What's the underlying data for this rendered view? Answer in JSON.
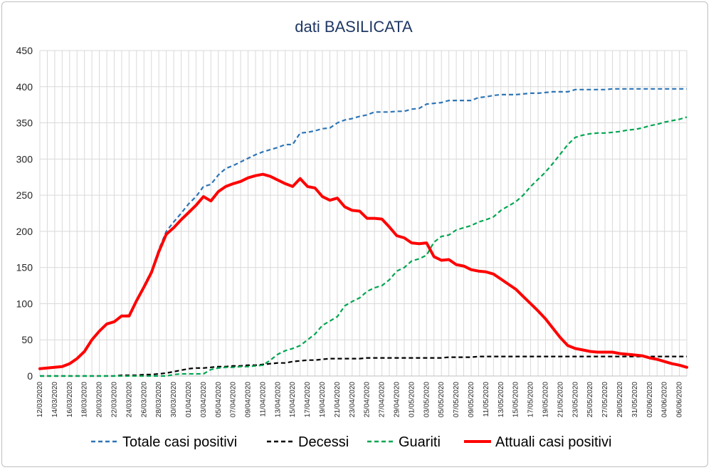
{
  "chart_data": {
    "type": "line",
    "title": "dati BASILICATA",
    "xlabel": "",
    "ylabel": "",
    "ylim": [
      0,
      450
    ],
    "yticks": [
      0,
      50,
      100,
      150,
      200,
      250,
      300,
      350,
      400,
      450
    ],
    "grid": true,
    "legend_position": "bottom",
    "x": [
      "12/03/2020",
      "13/03/2020",
      "14/03/2020",
      "15/03/2020",
      "16/03/2020",
      "17/03/2020",
      "18/03/2020",
      "19/03/2020",
      "20/03/2020",
      "21/03/2020",
      "22/03/2020",
      "23/03/2020",
      "24/03/2020",
      "25/03/2020",
      "26/03/2020",
      "27/03/2020",
      "28/03/2020",
      "29/03/2020",
      "30/03/2020",
      "31/03/2020",
      "01/04/2020",
      "02/04/2020",
      "03/04/2020",
      "04/04/2020",
      "05/04/2020",
      "06/04/2020",
      "07/04/2020",
      "08/04/2020",
      "09/04/2020",
      "10/04/2020",
      "11/04/2020",
      "12/04/2020",
      "13/04/2020",
      "14/04/2020",
      "15/04/2020",
      "16/04/2020",
      "17/04/2020",
      "18/04/2020",
      "19/04/2020",
      "20/04/2020",
      "21/04/2020",
      "22/04/2020",
      "23/04/2020",
      "24/04/2020",
      "25/04/2020",
      "26/04/2020",
      "27/04/2020",
      "28/04/2020",
      "29/04/2020",
      "30/04/2020",
      "01/05/2020",
      "02/05/2020",
      "03/05/2020",
      "04/05/2020",
      "05/05/2020",
      "06/05/2020",
      "07/05/2020",
      "08/05/2020",
      "09/05/2020",
      "10/05/2020",
      "11/05/2020",
      "12/05/2020",
      "13/05/2020",
      "14/05/2020",
      "15/05/2020",
      "16/05/2020",
      "17/05/2020",
      "18/05/2020",
      "19/05/2020",
      "20/05/2020",
      "21/05/2020",
      "22/05/2020",
      "23/05/2020",
      "24/05/2020",
      "25/05/2020",
      "26/05/2020",
      "27/05/2020",
      "28/05/2020",
      "29/05/2020",
      "30/05/2020",
      "31/05/2020",
      "01/06/2020",
      "02/06/2020",
      "03/06/2020",
      "04/06/2020",
      "05/06/2020",
      "06/06/2020",
      "07/06/2020"
    ],
    "tick_labels": [
      "12/03/2020",
      "14/03/2020",
      "16/03/2020",
      "18/03/2020",
      "20/03/2020",
      "22/03/2020",
      "24/03/2020",
      "26/03/2020",
      "28/03/2020",
      "30/03/2020",
      "01/04/2020",
      "03/04/2020",
      "05/04/2020",
      "07/04/2020",
      "09/04/2020",
      "11/04/2020",
      "13/04/2020",
      "15/04/2020",
      "17/04/2020",
      "19/04/2020",
      "21/04/2020",
      "23/04/2020",
      "25/04/2020",
      "27/04/2020",
      "29/04/2020",
      "01/05/2020",
      "03/05/2020",
      "05/05/2020",
      "07/05/2020",
      "09/05/2020",
      "11/05/2020",
      "13/05/2020",
      "15/05/2020",
      "17/05/2020",
      "19/05/2020",
      "21/05/2020",
      "23/05/2020",
      "25/05/2020",
      "27/05/2020",
      "29/05/2020",
      "31/05/2020",
      "02/06/2020",
      "04/06/2020",
      "06/06/2020"
    ],
    "series": [
      {
        "name": "Totale casi positivi",
        "color": "#2e75b6",
        "style": "dashed",
        "values": [
          10,
          11,
          12,
          13,
          17,
          24,
          34,
          50,
          62,
          72,
          75,
          84,
          84,
          105,
          125,
          145,
          175,
          200,
          213,
          225,
          238,
          248,
          262,
          265,
          278,
          287,
          291,
          296,
          301,
          306,
          310,
          313,
          316,
          320,
          320,
          336,
          337,
          339,
          342,
          343,
          350,
          354,
          356,
          359,
          361,
          365,
          365,
          365,
          366,
          366,
          369,
          370,
          376,
          377,
          378,
          381,
          381,
          381,
          381,
          385,
          386,
          388,
          389,
          389,
          389,
          390,
          391,
          391,
          392,
          393,
          393,
          393,
          396,
          396,
          396,
          396,
          396,
          397,
          397,
          397,
          397,
          397,
          397,
          397,
          397,
          397,
          397,
          397
        ]
      },
      {
        "name": "Decessi",
        "color": "#000000",
        "style": "dashed",
        "values": [
          0,
          0,
          0,
          0,
          0,
          0,
          0,
          0,
          0,
          0,
          0,
          1,
          1,
          1,
          2,
          2,
          3,
          4,
          6,
          8,
          10,
          11,
          11,
          12,
          13,
          13,
          14,
          14,
          15,
          15,
          16,
          17,
          18,
          18,
          20,
          21,
          22,
          22,
          23,
          24,
          24,
          24,
          24,
          24,
          25,
          25,
          25,
          25,
          25,
          25,
          25,
          25,
          25,
          25,
          25,
          26,
          26,
          26,
          26,
          27,
          27,
          27,
          27,
          27,
          27,
          27,
          27,
          27,
          27,
          27,
          27,
          27,
          27,
          27,
          27,
          27,
          27,
          27,
          27,
          27,
          27,
          27,
          27,
          27,
          27,
          27,
          27,
          27
        ]
      },
      {
        "name": "Guariti",
        "color": "#00a651",
        "style": "dashed",
        "values": [
          0,
          0,
          0,
          0,
          0,
          0,
          0,
          0,
          0,
          0,
          0,
          0,
          0,
          0,
          0,
          0,
          0,
          0,
          2,
          3,
          3,
          3,
          3,
          9,
          11,
          12,
          12,
          13,
          13,
          14,
          15,
          22,
          30,
          35,
          38,
          42,
          50,
          58,
          70,
          76,
          82,
          97,
          103,
          108,
          117,
          122,
          125,
          133,
          145,
          150,
          159,
          162,
          167,
          185,
          193,
          195,
          202,
          205,
          208,
          213,
          216,
          220,
          229,
          235,
          241,
          250,
          262,
          272,
          282,
          294,
          307,
          320,
          330,
          333,
          335,
          336,
          336,
          337,
          338,
          340,
          341,
          343,
          346,
          348,
          351,
          353,
          355,
          358
        ]
      },
      {
        "name": "Attuali casi positivi",
        "color": "#ff0000",
        "style": "solid",
        "values": [
          10,
          11,
          12,
          13,
          17,
          24,
          34,
          50,
          62,
          72,
          75,
          83,
          83,
          104,
          123,
          143,
          172,
          196,
          205,
          216,
          226,
          236,
          248,
          242,
          255,
          262,
          266,
          269,
          274,
          277,
          279,
          276,
          271,
          266,
          262,
          273,
          262,
          260,
          248,
          243,
          246,
          234,
          229,
          228,
          218,
          218,
          217,
          206,
          194,
          191,
          184,
          183,
          184,
          165,
          160,
          161,
          154,
          152,
          147,
          145,
          144,
          141,
          134,
          127,
          120,
          110,
          100,
          90,
          79,
          66,
          53,
          42,
          38,
          36,
          34,
          33,
          33,
          33,
          31,
          30,
          29,
          28,
          25,
          23,
          20,
          17,
          15,
          12
        ]
      }
    ]
  }
}
